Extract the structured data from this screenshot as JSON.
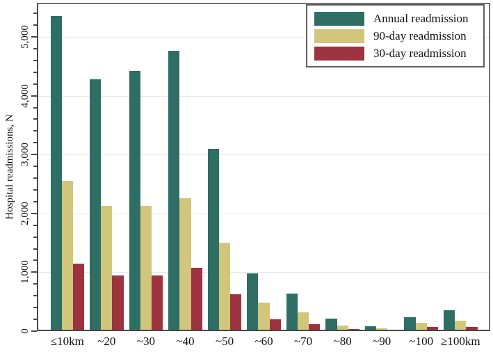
{
  "chart_data": {
    "type": "bar",
    "title": "",
    "xlabel": "",
    "ylabel": "Hospital readmissions, N",
    "categories": [
      "≤10km",
      "~20",
      "~30",
      "~40",
      "~50",
      "~60",
      "~70",
      "~80",
      "~90",
      "~100",
      "≥100km"
    ],
    "series": [
      {
        "name": "Annual readmission",
        "color": "#2e6e65",
        "values": [
          5350,
          4280,
          4420,
          4760,
          3100,
          980,
          640,
          210,
          80,
          240,
          350
        ]
      },
      {
        "name": "90-day readmission",
        "color": "#d2c67c",
        "values": [
          2550,
          2130,
          2130,
          2260,
          1500,
          490,
          320,
          100,
          45,
          140,
          180
        ]
      },
      {
        "name": "30-day readmission",
        "color": "#9d3240",
        "values": [
          1150,
          950,
          950,
          1080,
          630,
          200,
          120,
          40,
          20,
          70,
          75
        ]
      }
    ],
    "ylim": [
      0,
      5580
    ],
    "y_ticks": [
      0,
      1000,
      2000,
      3000,
      4000,
      5000
    ],
    "y_tick_labels": [
      "0",
      "1,000",
      "2,000",
      "3,000",
      "4,000",
      "5,000"
    ],
    "minor_tick_interval": 200,
    "grid": "horizontal-major",
    "legend_position": "top-right"
  },
  "colors": {
    "axis_box": "#474747",
    "gridline": "#e7e7e7",
    "background": "#ffffff",
    "text": "#111111"
  }
}
